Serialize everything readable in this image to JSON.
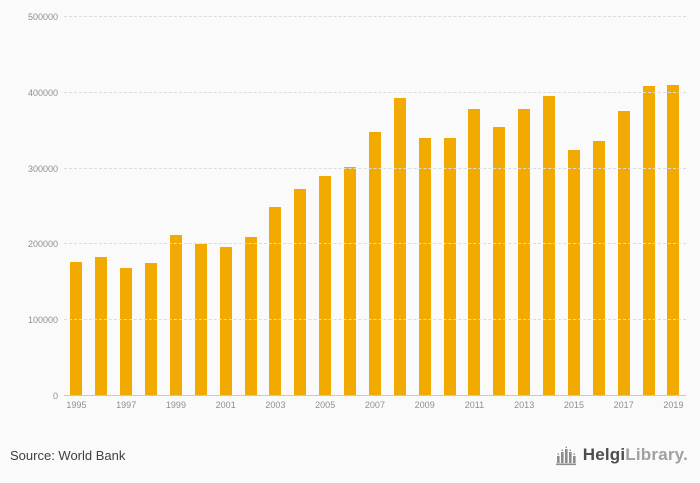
{
  "chart_data": {
    "type": "bar",
    "title": "",
    "xlabel": "",
    "ylabel": "",
    "bar_color": "#F2A900",
    "ylim": [
      0,
      500000
    ],
    "yticks": [
      0,
      100000,
      200000,
      300000,
      400000,
      500000
    ],
    "grid": "dashed-horizontal",
    "legend": "none",
    "x": [
      1995,
      1996,
      1997,
      1998,
      1999,
      2000,
      2001,
      2002,
      2003,
      2004,
      2005,
      2006,
      2007,
      2008,
      2009,
      2010,
      2011,
      2012,
      2013,
      2014,
      2015,
      2016,
      2017,
      2018,
      2019
    ],
    "values": [
      177000,
      184000,
      169000,
      176000,
      212000,
      201000,
      197000,
      210000,
      249000,
      273000,
      290000,
      302000,
      348000,
      393000,
      341000,
      340000,
      378000,
      355000,
      378000,
      396000,
      325000,
      337000,
      376000,
      409000,
      410000
    ],
    "xtick_shown_every": 2
  },
  "footer": {
    "source_label": "Source: World Bank",
    "logo": {
      "icon": "helgi-library-logo-icon",
      "text_bold": "Helgi",
      "text_light": "Library."
    }
  }
}
